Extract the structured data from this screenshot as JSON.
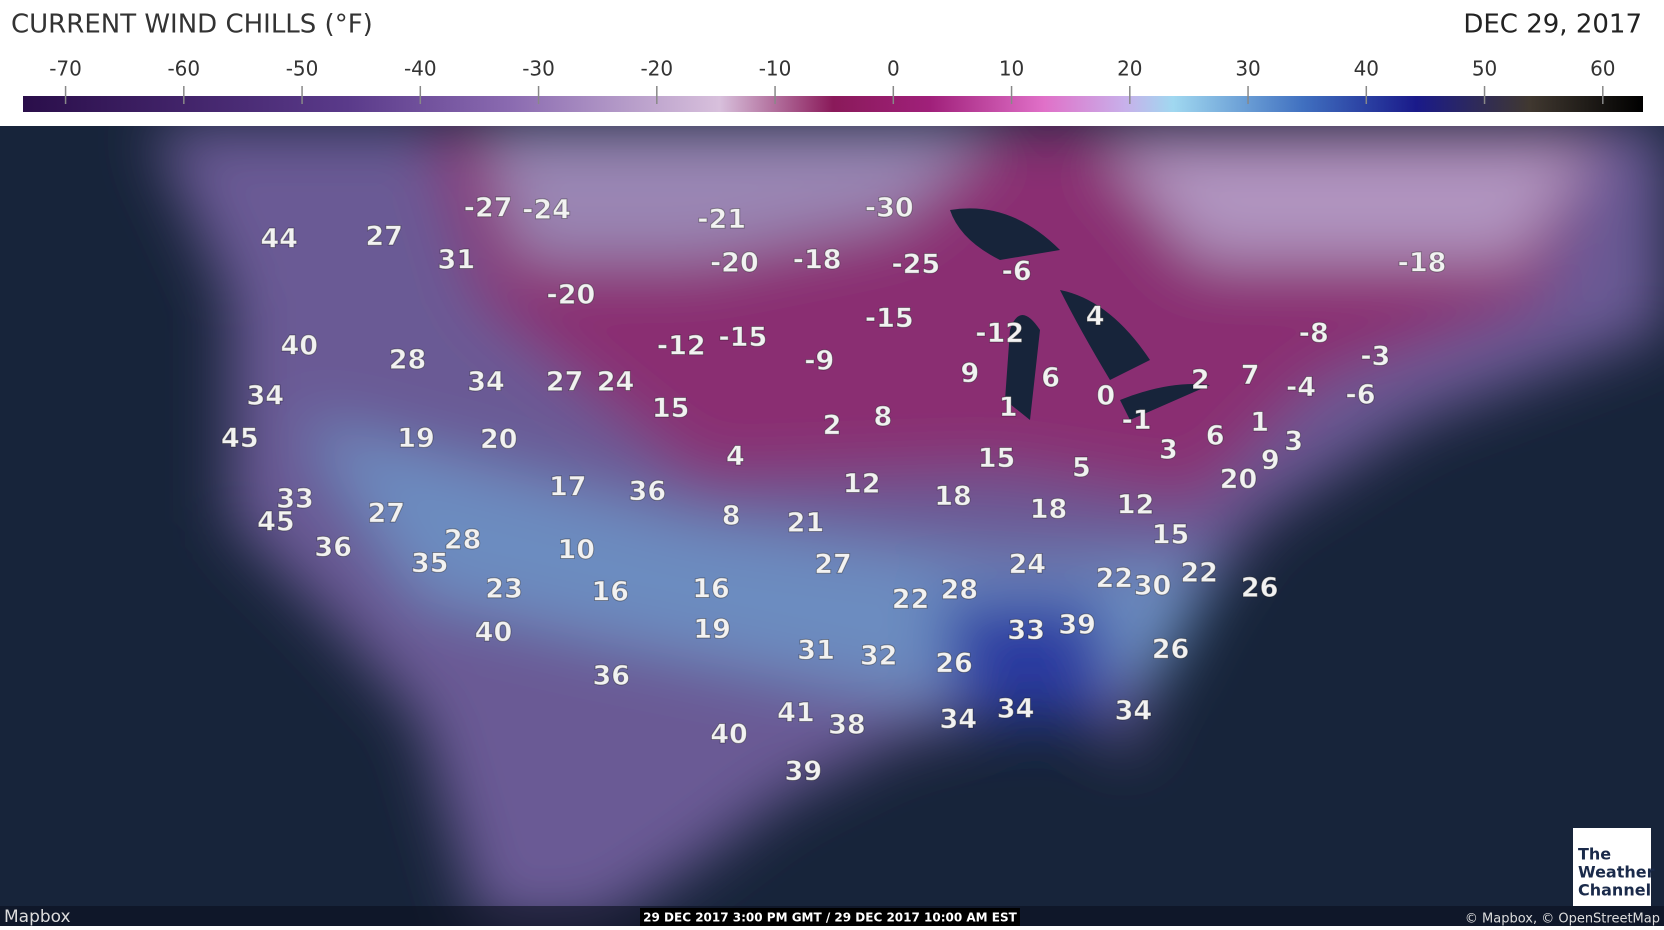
{
  "header": {
    "title": "CURRENT WIND CHILLS (°F)",
    "date": "DEC 29, 2017"
  },
  "legend": {
    "lim": [
      -73.6,
      63.4
    ],
    "ticks": [
      -70,
      -60,
      -50,
      -40,
      -30,
      -20,
      -10,
      0,
      10,
      20,
      30,
      40,
      50,
      60
    ]
  },
  "map": {
    "labels": [
      -27,
      -24,
      -30,
      -21,
      44,
      27,
      31,
      -20,
      -18,
      -25,
      -6,
      -18,
      -20,
      -15,
      4,
      -12,
      -8,
      40,
      28,
      -12,
      -15,
      -9,
      -3,
      9,
      6,
      2,
      7,
      -4,
      -6,
      34,
      34,
      27,
      24,
      0,
      1,
      -1,
      15,
      2,
      8,
      1,
      45,
      19,
      20,
      6,
      3,
      3,
      4,
      15,
      5,
      9,
      12,
      20,
      17,
      36,
      33,
      18,
      18,
      12,
      27,
      45,
      8,
      21,
      28,
      15,
      36,
      10,
      35,
      27,
      24,
      22,
      30,
      22,
      26,
      23,
      16,
      16,
      22,
      28,
      33,
      39,
      19,
      40,
      31,
      32,
      26,
      26,
      36,
      41,
      38,
      34,
      34,
      34,
      40,
      39
    ]
  },
  "footer": {
    "left": "Mapbox",
    "time": "29 DEC 2017 3:00 PM GMT / 29 DEC 2017 10:00 AM EST",
    "credit": "© Mapbox, © OpenStreetMap",
    "logo": [
      "The",
      "Weather",
      "Channel"
    ]
  }
}
